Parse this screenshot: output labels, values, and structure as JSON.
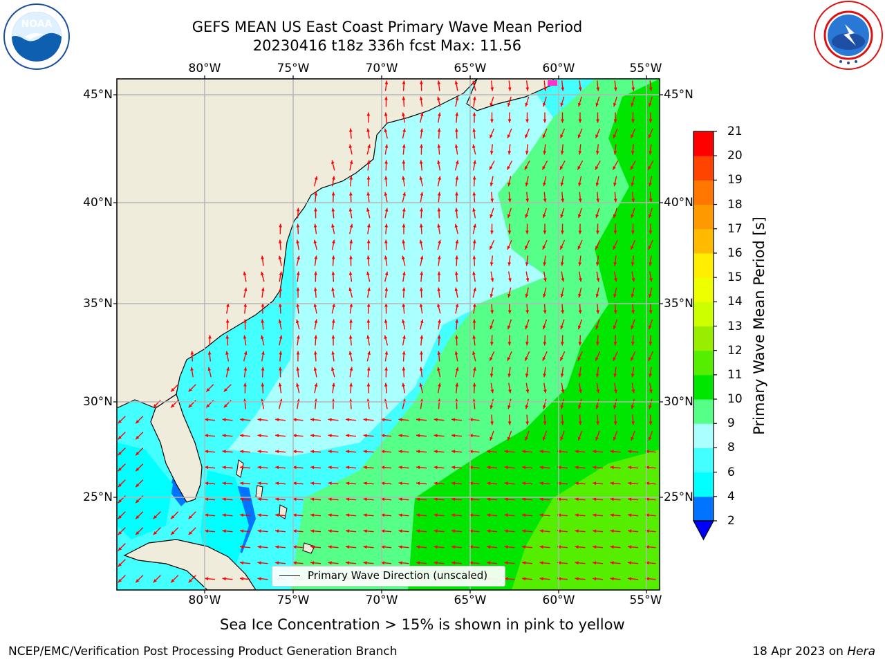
{
  "header": {
    "title_line1": "GEFS MEAN US East Coast Primary Wave Mean Period",
    "title_line2": "20230416 t18z 336h fcst   Max: 11.56"
  },
  "map": {
    "lon_labels": [
      "80°W",
      "75°W",
      "70°W",
      "65°W",
      "60°W",
      "55°W"
    ],
    "lat_labels": [
      "45°N",
      "40°N",
      "35°N",
      "30°N",
      "25°N"
    ],
    "legend_label": "Primary Wave Direction (unscaled)",
    "land_color": "#efecdc",
    "arrow_color": "#ff0000"
  },
  "colorbar": {
    "title": "Primary Wave Mean Period [s]",
    "ticks": [
      "2",
      "4",
      "6",
      "8",
      "9",
      "10",
      "11",
      "12",
      "13",
      "14",
      "15",
      "16",
      "17",
      "18",
      "19",
      "20",
      "21"
    ],
    "colors": [
      "#0000ff",
      "#0074ff",
      "#00ffff",
      "#44ffff",
      "#aaffff",
      "#55ff88",
      "#00e600",
      "#55ee00",
      "#99ee00",
      "#ccff00",
      "#eeff00",
      "#ffee00",
      "#ffbb00",
      "#ff9900",
      "#ff7700",
      "#ff4400",
      "#ff0000"
    ]
  },
  "notes": {
    "sea_ice": "Sea Ice Concentration > 15% is shown in pink to yellow"
  },
  "footer": {
    "left": "NCEP/EMC/Verification Post Processing Product Generation Branch",
    "date": "18 Apr 2023 on",
    "machine": "Hera"
  }
}
